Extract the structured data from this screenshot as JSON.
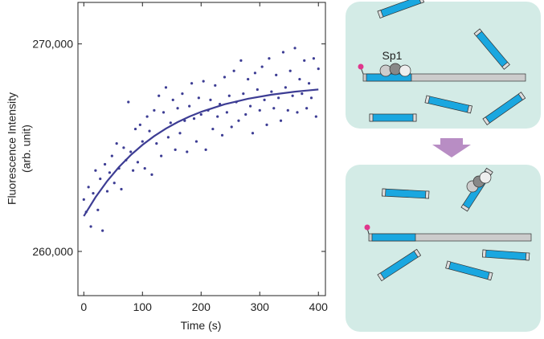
{
  "chart_data": {
    "type": "scatter",
    "xlabel": "Time (s)",
    "ylabel": [
      "Fluorescence Intensity",
      "(arb. unit)"
    ],
    "color": "#3d3d94",
    "x": [
      0,
      4,
      8,
      12,
      16,
      20,
      24,
      28,
      32,
      36,
      40,
      44,
      48,
      52,
      56,
      60,
      64,
      68,
      72,
      76,
      80,
      84,
      88,
      92,
      96,
      100,
      104,
      108,
      112,
      116,
      120,
      124,
      128,
      132,
      136,
      140,
      144,
      148,
      152,
      156,
      160,
      164,
      168,
      172,
      176,
      180,
      184,
      188,
      192,
      196,
      200,
      204,
      208,
      212,
      216,
      220,
      224,
      228,
      232,
      236,
      240,
      244,
      248,
      252,
      256,
      260,
      264,
      268,
      272,
      276,
      280,
      284,
      288,
      292,
      296,
      300,
      304,
      308,
      312,
      316,
      320,
      324,
      328,
      332,
      336,
      340,
      344,
      348,
      352,
      356,
      360,
      364,
      368,
      372,
      376,
      380,
      384,
      388,
      392,
      396,
      400
    ],
    "values": [
      262500,
      261900,
      263100,
      261200,
      262800,
      263900,
      262000,
      263500,
      261000,
      264200,
      262900,
      263800,
      264600,
      263300,
      265200,
      264000,
      263000,
      265000,
      264400,
      267200,
      264800,
      263900,
      265900,
      264300,
      266100,
      265300,
      264000,
      266500,
      265800,
      263700,
      266800,
      265200,
      267500,
      264600,
      266700,
      267900,
      265500,
      266200,
      267300,
      264900,
      266900,
      265700,
      267600,
      266300,
      264800,
      267000,
      268100,
      266400,
      265300,
      267400,
      266600,
      268200,
      264900,
      266800,
      267300,
      265900,
      268000,
      266500,
      267100,
      265600,
      268400,
      266700,
      267500,
      266000,
      268700,
      267200,
      266300,
      269200,
      267600,
      266600,
      268300,
      267000,
      265700,
      268600,
      267800,
      266800,
      268900,
      267300,
      266100,
      269300,
      267700,
      266900,
      268500,
      267400,
      266300,
      269600,
      267900,
      266800,
      268700,
      267500,
      269800,
      266700,
      268300,
      267600,
      269200,
      266900,
      268100,
      267400,
      269300,
      266500,
      268800
    ],
    "fit": {
      "x": [
        0,
        20,
        40,
        60,
        80,
        100,
        120,
        140,
        160,
        180,
        200,
        240,
        280,
        320,
        360,
        400
      ],
      "values": [
        261700,
        262611,
        263396,
        264068,
        264641,
        265134,
        265557,
        265920,
        266231,
        266497,
        266726,
        267089,
        267358,
        267553,
        267699,
        267805
      ]
    },
    "xlim": [
      -10,
      412
    ],
    "ylim": [
      257870,
      272000
    ],
    "xticks": [
      0,
      100,
      200,
      300,
      400
    ],
    "yticks": [
      {
        "value": 260000,
        "label": "260,000"
      },
      {
        "value": 270000,
        "label": "270,000"
      }
    ]
  },
  "diagram": {
    "label": "Sp1"
  }
}
